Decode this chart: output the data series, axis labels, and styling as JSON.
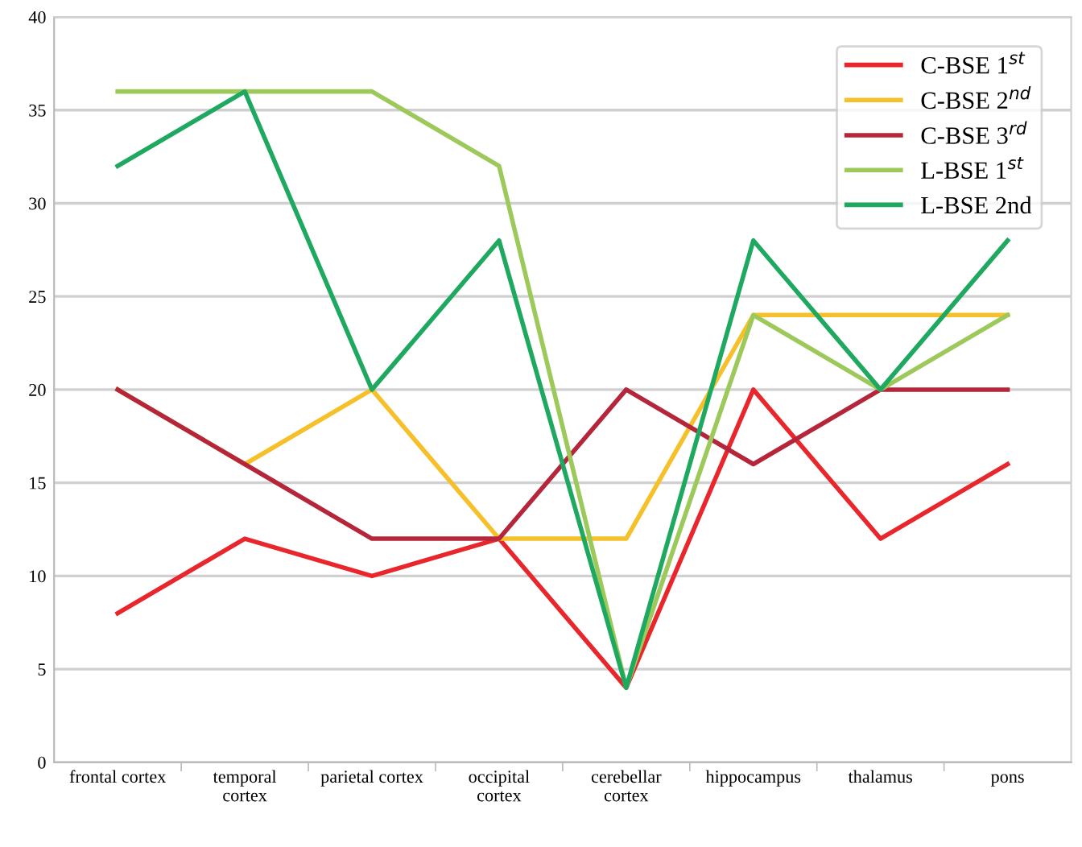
{
  "chart_data": {
    "type": "line",
    "categories": [
      "frontal cortex",
      "temporal\ncortex",
      "parietal cortex",
      "occipital\ncortex",
      "cerebellar\ncortex",
      "hippocampus",
      "thalamus",
      "pons"
    ],
    "series": [
      {
        "name": "C-BSE 1$^{st}$",
        "color": "#e8262b",
        "values": [
          8,
          12,
          10,
          12,
          4,
          20,
          12,
          16
        ]
      },
      {
        "name": "C-BSE 2$^{nd}$",
        "color": "#f5c02a",
        "values": [
          20,
          16,
          20,
          12,
          12,
          24,
          24,
          24
        ]
      },
      {
        "name": "C-BSE 3$^{rd}$",
        "color": "#b5263b",
        "values": [
          20,
          16,
          12,
          12,
          20,
          16,
          20,
          20
        ]
      },
      {
        "name": "L-BSE 1$^{st}$",
        "color": "#9cc95a",
        "values": [
          36,
          36,
          36,
          32,
          4,
          24,
          20,
          24
        ]
      },
      {
        "name": "L-BSE 2nd",
        "color": "#1fa860",
        "values": [
          32,
          36,
          20,
          28,
          4,
          28,
          20,
          28
        ]
      }
    ],
    "ylim": [
      0,
      40
    ],
    "yticks": [
      0,
      5,
      10,
      15,
      20,
      25,
      30,
      35,
      40
    ],
    "grid": "y",
    "legend": "top right",
    "marker": "none",
    "line_style": "solid"
  }
}
